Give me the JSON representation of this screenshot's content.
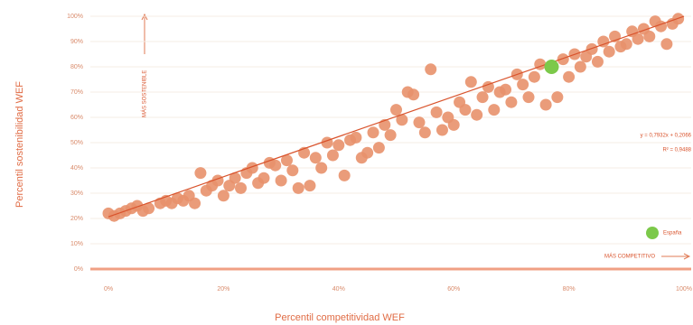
{
  "chart_data": {
    "type": "scatter",
    "xlabel": "Percentil competitividad WEF",
    "ylabel": "Percentil sostenibilidad WEF",
    "annotations": [
      "MÁS SOSTENIBLE",
      "MÁS COMPETITIVO",
      "y = 0,7932x + 0,2066",
      "R² = 0,9488"
    ],
    "xlim": [
      0,
      100
    ],
    "ylim": [
      0,
      100
    ],
    "xticks": [
      {
        "value": 0,
        "label": "0%"
      },
      {
        "value": 20,
        "label": "20%"
      },
      {
        "value": 40,
        "label": "40%"
      },
      {
        "value": 60,
        "label": "60%"
      },
      {
        "value": 80,
        "label": "80%"
      },
      {
        "value": 100,
        "label": "100%"
      }
    ],
    "yticks": [
      {
        "value": 0,
        "label": "0%"
      },
      {
        "value": 10,
        "label": "10%"
      },
      {
        "value": 20,
        "label": "20%"
      },
      {
        "value": 30,
        "label": "30%"
      },
      {
        "value": 40,
        "label": "40%"
      },
      {
        "value": 50,
        "label": "50%"
      },
      {
        "value": 60,
        "label": "60%"
      },
      {
        "value": 70,
        "label": "70%"
      },
      {
        "value": 80,
        "label": "80%"
      },
      {
        "value": 90,
        "label": "90%"
      },
      {
        "value": 100,
        "label": "100%"
      }
    ],
    "grid": true,
    "trendline": {
      "slope": 0.7932,
      "intercept": 20.66,
      "color": "#d9532c"
    },
    "series": [
      {
        "color": "#e8916b",
        "x": [
          0,
          1,
          2,
          3,
          4,
          5,
          6,
          7,
          9,
          10,
          11,
          12,
          13,
          14,
          15,
          16,
          17,
          18,
          19,
          20,
          21,
          22,
          23,
          24,
          25,
          26,
          27,
          28,
          29,
          30,
          31,
          32,
          33,
          34,
          35,
          36,
          37,
          38,
          39,
          40,
          41,
          42,
          43,
          44,
          45,
          46,
          47,
          48,
          49,
          50,
          51,
          52,
          53,
          54,
          55,
          56,
          57,
          58,
          59,
          60,
          61,
          62,
          63,
          64,
          65,
          66,
          67,
          68,
          69,
          70,
          71,
          72,
          73,
          74,
          75,
          76,
          78,
          79,
          80,
          81,
          82,
          83,
          84,
          85,
          86,
          87,
          88,
          89,
          90,
          91,
          92,
          93,
          94,
          95,
          96,
          97,
          98,
          99
        ],
        "values": [
          22,
          21,
          22,
          23,
          24,
          25,
          23,
          24,
          26,
          27,
          26,
          28,
          27,
          29,
          26,
          38,
          31,
          33,
          35,
          29,
          33,
          36,
          32,
          38,
          40,
          34,
          36,
          42,
          41,
          35,
          43,
          39,
          32,
          46,
          33,
          44,
          40,
          50,
          45,
          49,
          37,
          51,
          52,
          44,
          46,
          54,
          48,
          57,
          53,
          63,
          59,
          70,
          69,
          58,
          54,
          79,
          62,
          55,
          60,
          57,
          66,
          63,
          74,
          61,
          68,
          72,
          63,
          70,
          71,
          66,
          77,
          73,
          68,
          76,
          81,
          65,
          68,
          83,
          76,
          85,
          80,
          84,
          87,
          82,
          90,
          86,
          92,
          88,
          89,
          94,
          91,
          95,
          92,
          98,
          96,
          89,
          97,
          99
        ]
      },
      {
        "name": "España",
        "color": "#7cc94a",
        "x": [
          77
        ],
        "values": [
          80
        ]
      }
    ]
  }
}
